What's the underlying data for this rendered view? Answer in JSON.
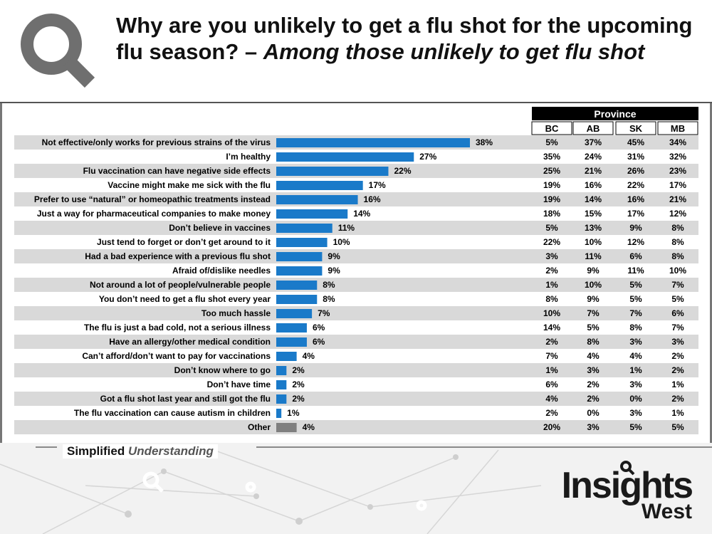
{
  "title": {
    "line_main": "Why are you unlikely to get a flu shot for the upcoming flu season? –",
    "line_italic": "Among those unlikely to get flu shot"
  },
  "footer": {
    "tagline_main": "Simplified",
    "tagline_accent": "Understanding",
    "brand_main": "Insights",
    "brand_sub": "West"
  },
  "colors": {
    "bar": "#1a7ac9",
    "bar_other": "#7f7f7f",
    "stripe": "#d9d9d9",
    "header_bg": "#000000"
  },
  "chart_data": {
    "type": "bar",
    "orientation": "horizontal",
    "title": "",
    "xlim": [
      0,
      38
    ],
    "grid": false,
    "table_group_header": "Province",
    "table_columns": [
      "BC",
      "AB",
      "SK",
      "MB"
    ],
    "categories": [
      "Not effective/only works for previous strains of the virus",
      "I’m healthy",
      "Flu vaccination can have negative side effects",
      "Vaccine might make me sick with the flu",
      "Prefer to use “natural” or homeopathic treatments instead",
      "Just a way for pharmaceutical companies to make money",
      "Don’t believe in vaccines",
      "Just tend to forget or don’t get around to it",
      "Had a bad experience with a previous flu shot",
      "Afraid of/dislike needles",
      "Not around a lot of people/vulnerable people",
      "You don’t need to get a flu shot every year",
      "Too much hassle",
      "The flu is just a bad cold, not a serious illness",
      "Have an allergy/other medical condition",
      "Can’t afford/don’t want to pay for vaccinations",
      "Don’t know where to go",
      "Don’t have time",
      "Got a flu shot last year and still got the flu",
      "The flu vaccination can cause autism in children",
      "Other"
    ],
    "values": [
      38,
      27,
      22,
      17,
      16,
      14,
      11,
      10,
      9,
      9,
      8,
      8,
      7,
      6,
      6,
      4,
      2,
      2,
      2,
      1,
      4
    ],
    "value_labels": [
      "38%",
      "27%",
      "22%",
      "17%",
      "16%",
      "14%",
      "11%",
      "10%",
      "9%",
      "9%",
      "8%",
      "8%",
      "7%",
      "6%",
      "6%",
      "4%",
      "2%",
      "2%",
      "2%",
      "1%",
      "4%"
    ],
    "table_rows": [
      [
        "5%",
        "37%",
        "45%",
        "34%"
      ],
      [
        "35%",
        "24%",
        "31%",
        "32%"
      ],
      [
        "25%",
        "21%",
        "26%",
        "23%"
      ],
      [
        "19%",
        "16%",
        "22%",
        "17%"
      ],
      [
        "19%",
        "14%",
        "16%",
        "21%"
      ],
      [
        "18%",
        "15%",
        "17%",
        "12%"
      ],
      [
        "5%",
        "13%",
        "9%",
        "8%"
      ],
      [
        "22%",
        "10%",
        "12%",
        "8%"
      ],
      [
        "3%",
        "11%",
        "6%",
        "8%"
      ],
      [
        "2%",
        "9%",
        "11%",
        "10%"
      ],
      [
        "1%",
        "10%",
        "5%",
        "7%"
      ],
      [
        "8%",
        "9%",
        "5%",
        "5%"
      ],
      [
        "10%",
        "7%",
        "7%",
        "6%"
      ],
      [
        "14%",
        "5%",
        "8%",
        "7%"
      ],
      [
        "2%",
        "8%",
        "3%",
        "3%"
      ],
      [
        "7%",
        "4%",
        "4%",
        "2%"
      ],
      [
        "1%",
        "3%",
        "1%",
        "2%"
      ],
      [
        "6%",
        "2%",
        "3%",
        "1%"
      ],
      [
        "4%",
        "2%",
        "0%",
        "2%"
      ],
      [
        "2%",
        "0%",
        "3%",
        "1%"
      ],
      [
        "20%",
        "3%",
        "5%",
        "5%"
      ]
    ]
  }
}
